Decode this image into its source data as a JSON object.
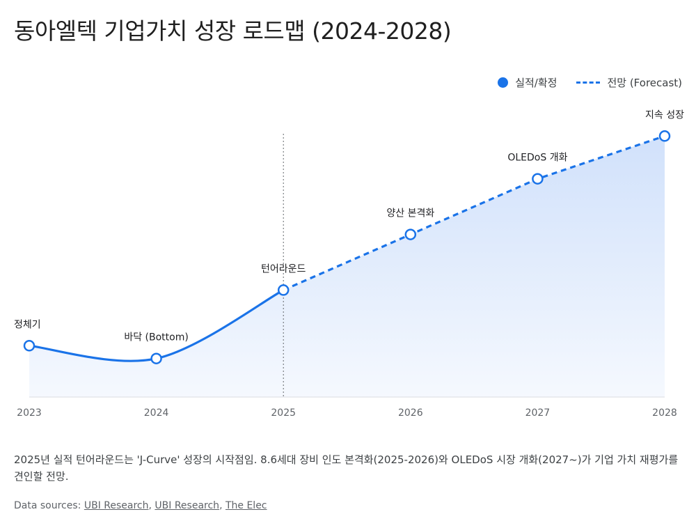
{
  "title": "동아엘텍 기업가치 성장 로드맵 (2024-2028)",
  "legend": {
    "actual": "실적/확정",
    "forecast": "전망 (Forecast)"
  },
  "colors": {
    "accent": "#1a73e8",
    "fill_top": "#c9dcfa",
    "fill_bottom": "#f4f8fe",
    "baseline": "#dadce0",
    "divider": "#5f6368"
  },
  "chart_data": {
    "type": "line",
    "title": "동아엘텍 기업가치 성장 로드맵 (2024-2028)",
    "xlabel": "",
    "ylabel": "",
    "categories": [
      "2023",
      "2024",
      "2025",
      "2026",
      "2027",
      "2028"
    ],
    "series": [
      {
        "name": "실적/확정",
        "style": "solid",
        "x": [
          "2023",
          "2024",
          "2025"
        ],
        "values": [
          1.2,
          0.9,
          2.5
        ]
      },
      {
        "name": "전망 (Forecast)",
        "style": "dashed",
        "x": [
          "2025",
          "2026",
          "2027",
          "2028"
        ],
        "values": [
          2.5,
          3.8,
          5.1,
          6.1
        ]
      }
    ],
    "point_labels": [
      "정체기",
      "바닥 (Bottom)",
      "턴어라운드",
      "양산 본격화",
      "OLEDoS 개화",
      "지속 성장"
    ],
    "divider_at": "2025",
    "ylim": [
      0,
      7
    ],
    "y_axis_visible": false,
    "grid": false,
    "area_fill": true,
    "legend_position": "top-right"
  },
  "caption": "2025년 실적 턴어라운드는 'J-Curve' 성장의 시작점임. 8.6세대 장비 인도 본격화(2025-2026)와 OLEDoS 시장 개화(2027~)가 기업 가치 재평가를 견인할 전망.",
  "sources": {
    "prefix": "Data sources: ",
    "links": [
      "UBI Research",
      "UBI Research",
      "The Elec"
    ]
  }
}
